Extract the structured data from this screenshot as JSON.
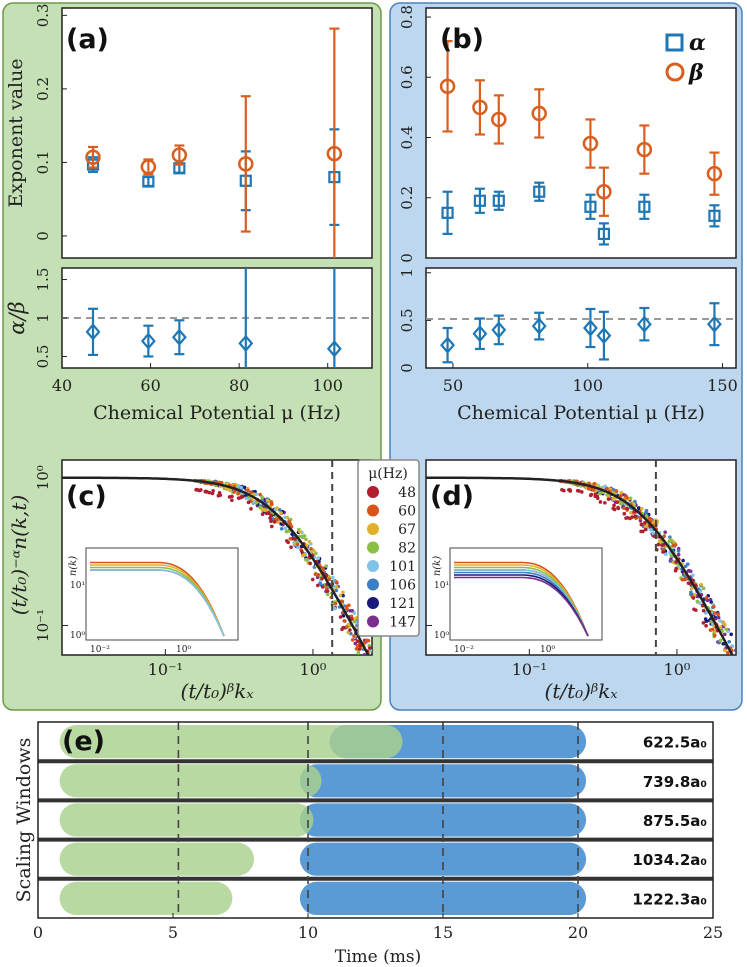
{
  "colors": {
    "alpha": "#1f77b4",
    "beta": "#d95f20",
    "green_panel": "#c5e0b4",
    "blue_panel": "#bdd7ee",
    "green_window": "#a9d18e",
    "blue_window": "#5b9bd5"
  },
  "labels": {
    "panel_a": "(a)",
    "panel_b": "(b)",
    "panel_c": "(c)",
    "panel_d": "(d)",
    "panel_e": "(e)",
    "exponent_ylabel": "Exponent value",
    "ratio_ylabel": "α/β",
    "chem_xlabel": "Chemical Potential μ (Hz)",
    "collapse_ylabel": "(t/t₀)⁻ᵅn(k,t)",
    "collapse_xlabel": "(t/t₀)ᵝkₓ",
    "inset_ylabel": "n(k)",
    "legend_alpha": "α",
    "legend_beta": "β",
    "mu_legend_title": "μ(Hz)",
    "windows_ylabel": "Scaling Windows",
    "time_xlabel": "Time (ms)"
  },
  "chart_data": [
    {
      "id": "a",
      "type": "scatter",
      "ylabel": "Exponent value",
      "xlim": [
        40,
        110
      ],
      "ylim": [
        -0.03,
        0.31
      ],
      "yticks": [
        "0",
        "0.1",
        "0.2",
        "0.3"
      ],
      "series": [
        {
          "name": "α",
          "marker": "square",
          "x": [
            47,
            59.5,
            66.5,
            81.5,
            101.5
          ],
          "y": [
            0.097,
            0.074,
            0.092,
            0.075,
            0.08
          ],
          "err": [
            0.01,
            0.006,
            0.006,
            0.04,
            0.065
          ]
        },
        {
          "name": "β",
          "marker": "circle",
          "x": [
            47,
            59.5,
            66.5,
            81.5,
            101.5
          ],
          "y": [
            0.107,
            0.094,
            0.11,
            0.098,
            0.112
          ],
          "err": [
            0.014,
            0.01,
            0.013,
            0.092,
            0.17
          ]
        }
      ]
    },
    {
      "id": "a-ratio",
      "type": "scatter",
      "ylabel": "α/β",
      "xlabel": "Chemical Potential μ (Hz)",
      "xlim": [
        40,
        110
      ],
      "ylim": [
        0.35,
        1.65
      ],
      "xticks": [
        "40",
        "60",
        "80",
        "100"
      ],
      "yticks": [
        "0.5",
        "1",
        "1.5"
      ],
      "reference_line": 1,
      "series": [
        {
          "name": "α/β",
          "marker": "diamond",
          "x": [
            47,
            59.5,
            66.5,
            81.5,
            101.5
          ],
          "y": [
            0.82,
            0.7,
            0.75,
            0.67,
            0.6
          ],
          "err": [
            0.3,
            0.2,
            0.22,
            1.5,
            1.7
          ]
        }
      ]
    },
    {
      "id": "b",
      "type": "scatter",
      "xlim": [
        40,
        155
      ],
      "ylim": [
        0,
        0.83
      ],
      "yticks": [
        "0",
        "0.2",
        "0.4",
        "0.6",
        "0.8"
      ],
      "series": [
        {
          "name": "α",
          "marker": "square",
          "x": [
            48,
            60,
            67,
            82,
            101,
            106,
            121,
            147
          ],
          "y": [
            0.15,
            0.19,
            0.19,
            0.22,
            0.17,
            0.08,
            0.17,
            0.14
          ],
          "err": [
            0.07,
            0.04,
            0.03,
            0.03,
            0.04,
            0.035,
            0.04,
            0.035
          ]
        },
        {
          "name": "β",
          "marker": "circle",
          "x": [
            48,
            60,
            67,
            82,
            101,
            106,
            121,
            147
          ],
          "y": [
            0.57,
            0.5,
            0.46,
            0.48,
            0.38,
            0.22,
            0.36,
            0.28
          ],
          "err": [
            0.15,
            0.09,
            0.08,
            0.08,
            0.08,
            0.08,
            0.08,
            0.07
          ]
        }
      ]
    },
    {
      "id": "b-ratio",
      "type": "scatter",
      "xlabel": "Chemical Potential μ (Hz)",
      "xlim": [
        40,
        155
      ],
      "ylim": [
        0,
        1.05
      ],
      "xticks": [
        "50",
        "100",
        "150"
      ],
      "yticks": [
        "0",
        "0.5",
        "1"
      ],
      "reference_line": 0.5,
      "series": [
        {
          "name": "α/β",
          "marker": "diamond",
          "x": [
            48,
            60,
            67,
            82,
            101,
            106,
            121,
            147
          ],
          "y": [
            0.24,
            0.36,
            0.4,
            0.44,
            0.42,
            0.34,
            0.46,
            0.46
          ],
          "err": [
            0.18,
            0.16,
            0.15,
            0.14,
            0.2,
            0.25,
            0.17,
            0.22
          ]
        }
      ]
    },
    {
      "id": "c-d",
      "type": "line",
      "xlabel": "(t/t₀)ᵝkₓ",
      "ylabel": "(t/t₀)⁻ᵅn(k,t)",
      "xscale": "log",
      "yscale": "log",
      "xticks": [
        "10⁻¹",
        "10⁰"
      ],
      "yticks": [
        "10⁰",
        "10⁻¹"
      ],
      "mu_values": [
        "48",
        "60",
        "67",
        "82",
        "101",
        "106",
        "121",
        "147"
      ],
      "mu_colors": [
        "#b01e2f",
        "#d9541a",
        "#e0b12b",
        "#8cbf45",
        "#7fc4e6",
        "#3d7fc4",
        "#1a1a7a",
        "#7a2f8e"
      ],
      "cutoffs": [
        1.35,
        0.72
      ],
      "inset": {
        "ylabel": "n(k)",
        "xticks": [
          "10⁻²",
          "10⁰"
        ],
        "yticks": [
          "10¹",
          "10⁰"
        ]
      }
    },
    {
      "id": "e",
      "type": "bar",
      "xlabel": "Time (ms)",
      "ylabel": "Scaling Windows",
      "xlim": [
        0,
        25
      ],
      "xticks": [
        "0",
        "5",
        "10",
        "15",
        "20",
        "25"
      ],
      "rows": [
        {
          "label": "622.5a₀",
          "green": [
            0.8,
            13.5
          ],
          "blue": [
            10.8,
            20.3
          ]
        },
        {
          "label": "739.8a₀",
          "green": [
            0.8,
            10.5
          ],
          "blue": [
            9.7,
            20.3
          ]
        },
        {
          "label": "875.5a₀",
          "green": [
            0.8,
            10.2
          ],
          "blue": [
            9.7,
            20.3
          ]
        },
        {
          "label": "1034.2a₀",
          "green": [
            0.8,
            8.0
          ],
          "blue": [
            9.7,
            20.3
          ]
        },
        {
          "label": "1222.3a₀",
          "green": [
            0.8,
            7.2
          ],
          "blue": [
            9.7,
            20.3
          ]
        }
      ],
      "dashed_times": [
        5.2,
        10,
        15,
        20
      ]
    }
  ]
}
